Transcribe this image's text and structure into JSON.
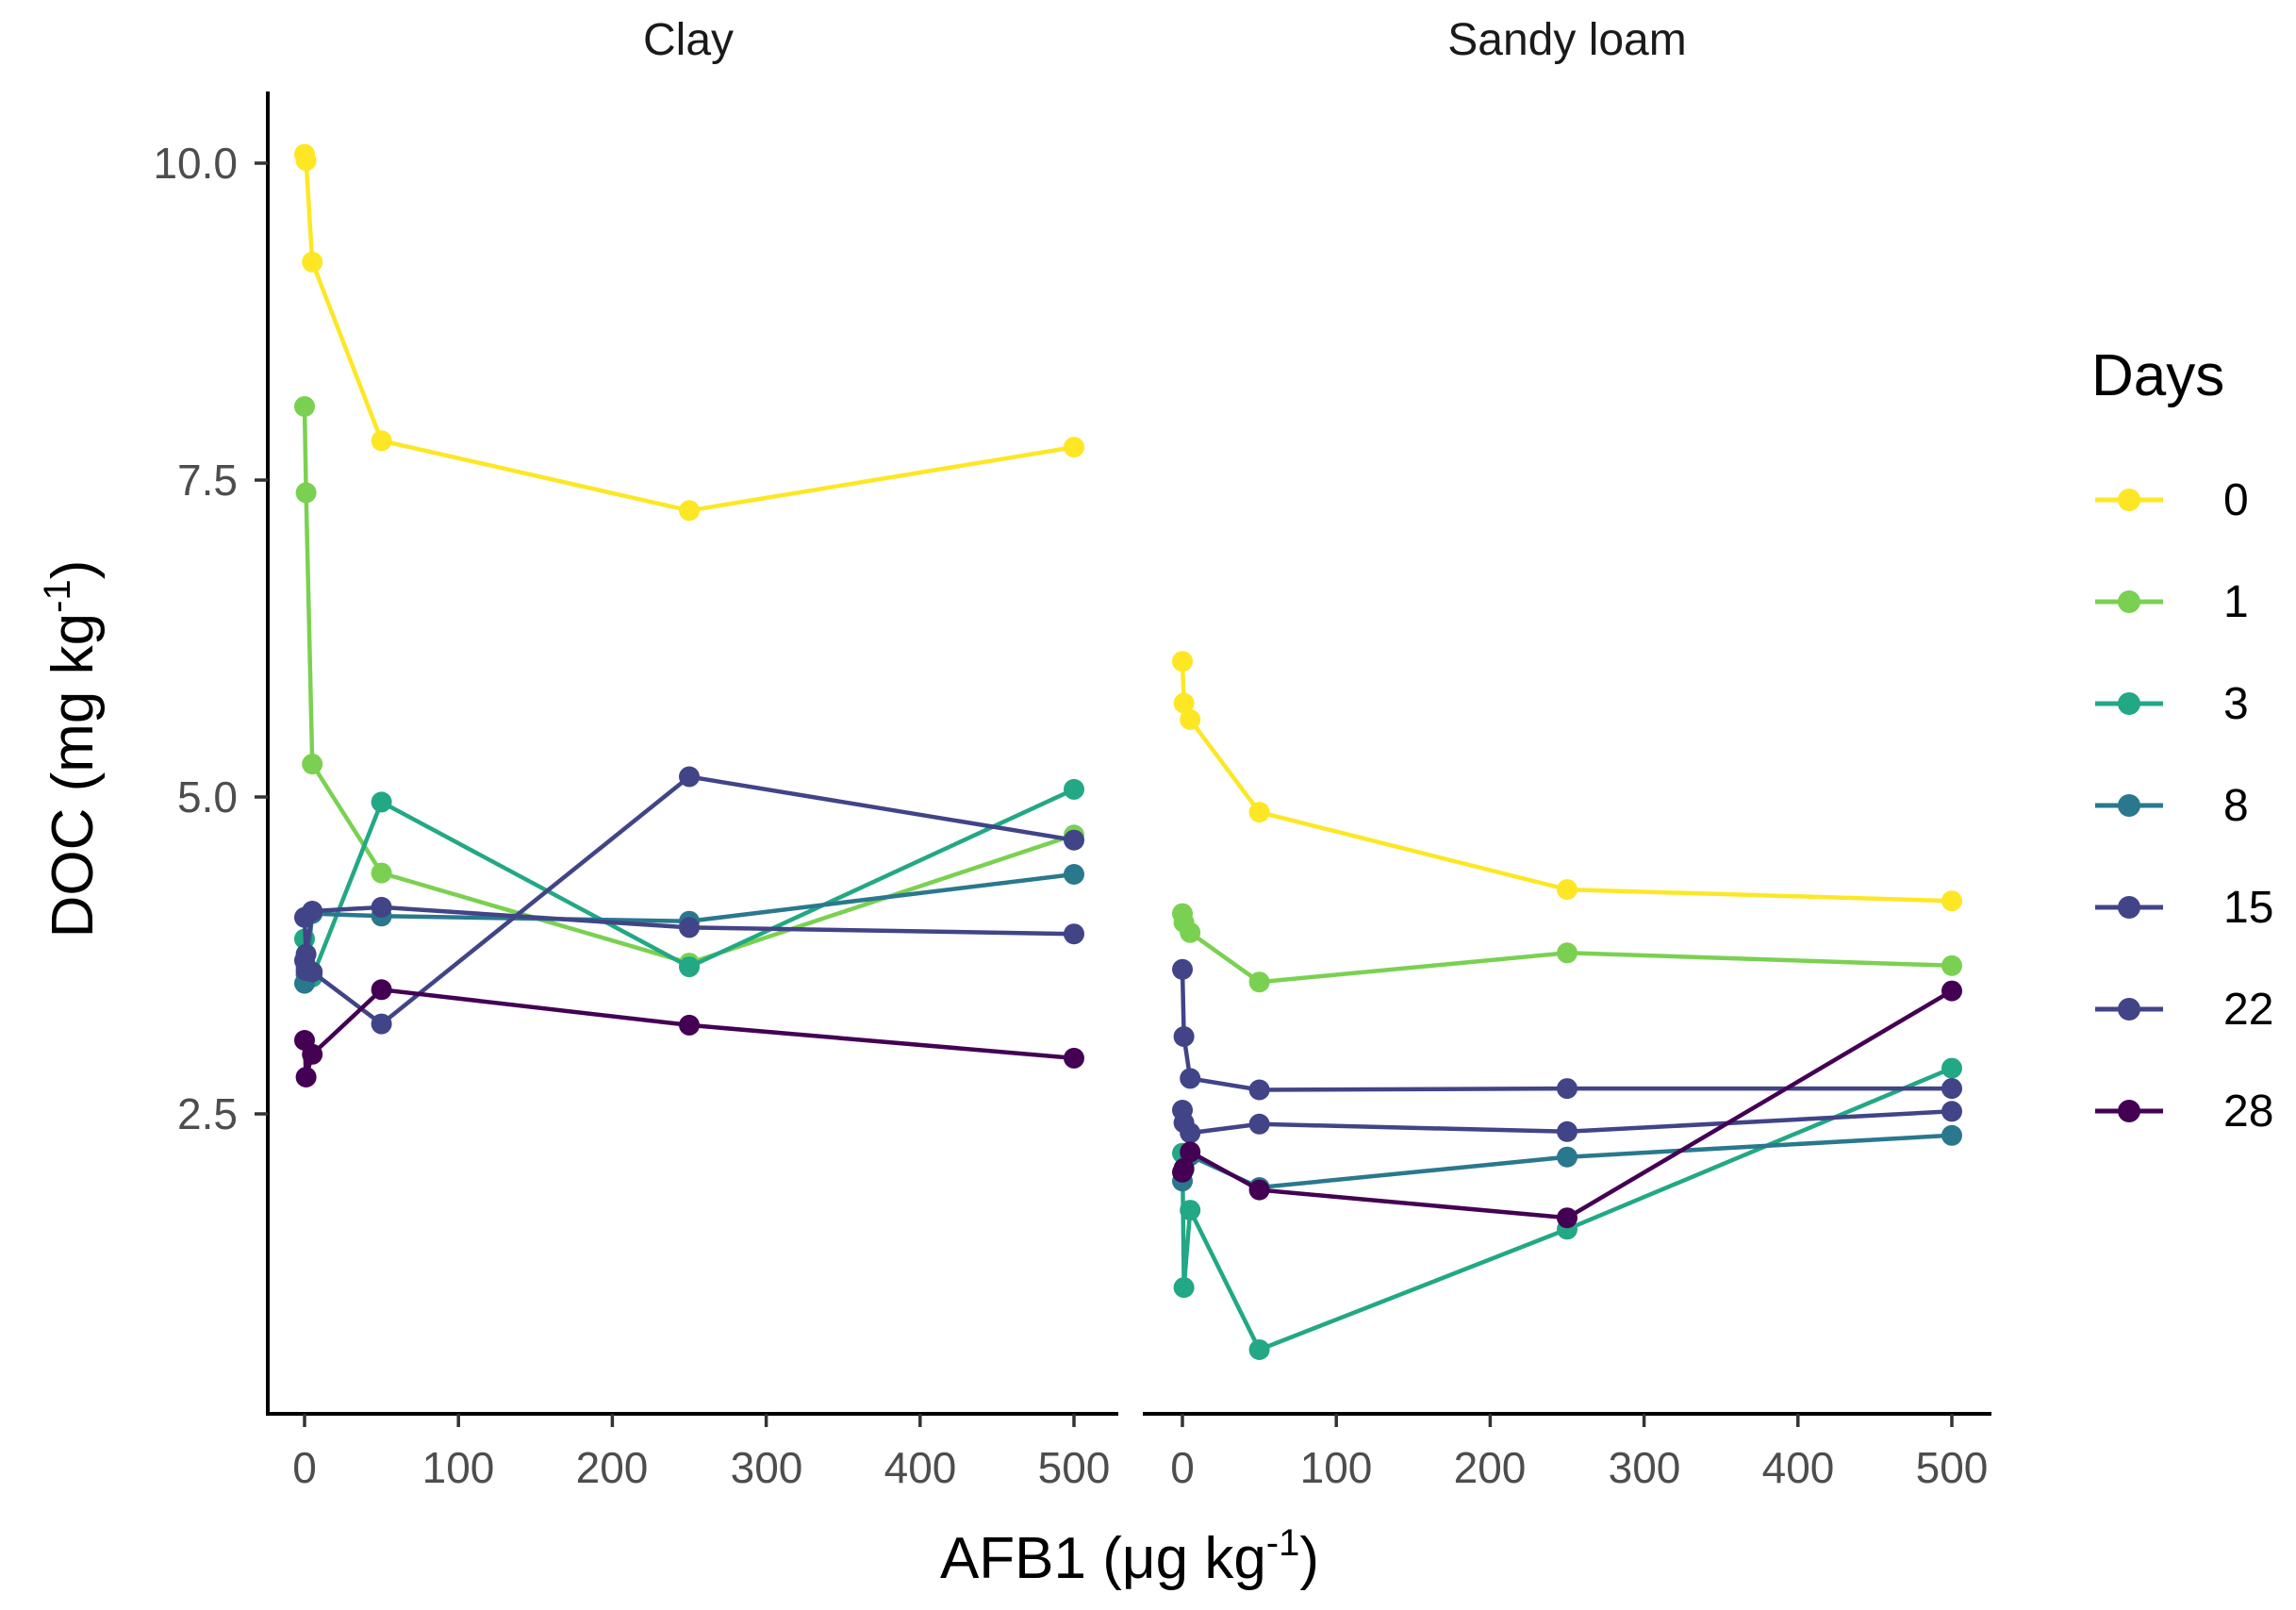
{
  "chart_data": {
    "type": "line",
    "facets": [
      "Clay",
      "Sandy loam"
    ],
    "xlabel": "AFB1 (μg kg",
    "xlabel_sup": "-1",
    "xlabel_end": ")",
    "ylabel": "DOC (mg kg",
    "ylabel_sup": "-1",
    "ylabel_end": ")",
    "xlim": [
      -25,
      525
    ],
    "ylim": [
      0.2,
      10.6
    ],
    "xticks": [
      0,
      100,
      200,
      300,
      400,
      500
    ],
    "xtick_labels": [
      "0",
      "100",
      "200",
      "300",
      "400",
      "500"
    ],
    "yticks": [
      2.5,
      5.0,
      7.5,
      10.0
    ],
    "ytick_labels": [
      "2.5",
      "5.0",
      "7.5",
      "10.0"
    ],
    "legend": {
      "title": "Days",
      "position": "right"
    },
    "x": [
      0,
      1,
      5,
      50,
      250,
      500
    ],
    "series": [
      {
        "name": "0",
        "color": "#FDE725",
        "values": {
          "Clay": [
            10.07,
            10.02,
            9.22,
            7.81,
            7.26,
            7.76
          ],
          "Sandy loam": [
            6.07,
            5.74,
            5.61,
            4.88,
            4.27,
            4.18
          ]
        }
      },
      {
        "name": "1",
        "color": "#7AD151",
        "values": {
          "Clay": [
            8.08,
            7.4,
            5.26,
            4.4,
            3.69,
            4.7
          ],
          "Sandy loam": [
            4.08,
            4.01,
            3.93,
            3.54,
            3.77,
            3.67
          ]
        }
      },
      {
        "name": "3",
        "color": "#22A884",
        "values": {
          "Clay": [
            3.88,
            3.66,
            3.58,
            4.96,
            3.66,
            5.06
          ],
          "Sandy loam": [
            2.19,
            1.13,
            1.74,
            0.64,
            1.59,
            2.86
          ]
        }
      },
      {
        "name": "8",
        "color": "#2A788E",
        "values": {
          "Clay": [
            3.53,
            3.6,
            4.08,
            4.06,
            4.02,
            4.39
          ],
          "Sandy loam": [
            1.97,
            2.06,
            2.17,
            1.92,
            2.16,
            2.33
          ]
        }
      },
      {
        "name": "15",
        "color": "#414487",
        "values": {
          "Clay": [
            3.71,
            3.63,
            3.62,
            3.21,
            5.16,
            4.66
          ],
          "Sandy loam": [
            3.64,
            3.11,
            2.78,
            2.69,
            2.7,
            2.7
          ]
        }
      },
      {
        "name": "22",
        "color": "#414487",
        "values": {
          "Clay": [
            4.05,
            3.76,
            4.1,
            4.13,
            3.97,
            3.92
          ],
          "Sandy loam": [
            2.53,
            2.43,
            2.35,
            2.42,
            2.36,
            2.52
          ]
        }
      },
      {
        "name": "28",
        "color": "#440154",
        "values": {
          "Clay": [
            3.08,
            2.79,
            2.97,
            3.48,
            3.2,
            2.94
          ],
          "Sandy loam": [
            2.04,
            2.07,
            2.2,
            1.9,
            1.68,
            3.47
          ]
        }
      }
    ]
  }
}
